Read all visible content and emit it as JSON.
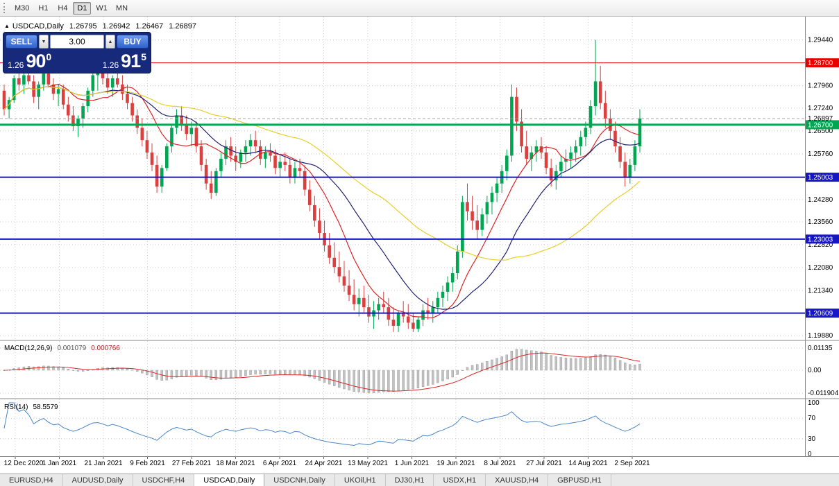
{
  "toolbar": {
    "timeframes": [
      {
        "label": "M30",
        "active": false
      },
      {
        "label": "H1",
        "active": false
      },
      {
        "label": "H4",
        "active": false
      },
      {
        "label": "D1",
        "active": true
      },
      {
        "label": "W1",
        "active": false
      },
      {
        "label": "MN",
        "active": false
      }
    ]
  },
  "chart_header": {
    "icon": "▲",
    "symbol": "USDCAD,Daily",
    "open": "1.26795",
    "high": "1.26942",
    "low": "1.26467",
    "close": "1.26897"
  },
  "trade_panel": {
    "sell_label": "SELL",
    "buy_label": "BUY",
    "volume": "3.00",
    "spin_down_icon": "▼",
    "spin_up_icon": "▲",
    "bid": {
      "prefix": "1.26",
      "big": "90",
      "sup": "0"
    },
    "ask": {
      "prefix": "1.26",
      "big": "91",
      "sup": "5"
    }
  },
  "chart_data": {
    "type": "candlestick",
    "title": "USDCAD,Daily",
    "price_axis": {
      "min": 1.1975,
      "max": 1.297,
      "grid_labels": [
        "1.29440",
        "1.27960",
        "1.27240",
        "1.26500",
        "1.25760",
        "1.24280",
        "1.23560",
        "1.22820",
        "1.22080",
        "1.21340",
        "1.19880"
      ]
    },
    "x_labels": [
      "12 Dec 2020",
      "1 Jan 2021",
      "21 Jan 2021",
      "9 Feb 2021",
      "27 Feb 2021",
      "18 Mar 2021",
      "6 Apr 2021",
      "24 Apr 2021",
      "13 May 2021",
      "1 Jun 2021",
      "19 Jun 2021",
      "8 Jul 2021",
      "27 Jul 2021",
      "14 Aug 2021",
      "2 Sep 2021"
    ],
    "hlines": [
      {
        "price": 1.287,
        "label": "1.28700",
        "color": "#e80000",
        "width": 1
      },
      {
        "price": 1.267,
        "label": "1.26700",
        "color": "#00a651",
        "width": 3
      },
      {
        "price": 1.25003,
        "label": "1.25003",
        "color": "#1616c8",
        "width": 2
      },
      {
        "price": 1.23003,
        "label": "1.23003",
        "color": "#1616c8",
        "width": 2
      },
      {
        "price": 1.20609,
        "label": "1.20609",
        "color": "#1616c8",
        "width": 2
      }
    ],
    "current_price": {
      "value": 1.26897,
      "label": "1.26897"
    },
    "colors": {
      "up": "#00a651",
      "down": "#d94040"
    },
    "moving_averages": [
      {
        "period": 10,
        "color": "#d92626"
      },
      {
        "period": 21,
        "color": "#20206e"
      },
      {
        "period": 45,
        "color": "#e8cf2a"
      }
    ],
    "candles": [
      [
        1.278,
        1.28,
        1.27,
        1.272
      ],
      [
        1.272,
        1.276,
        1.269,
        1.275
      ],
      [
        1.275,
        1.283,
        1.274,
        1.282
      ],
      [
        1.282,
        1.285,
        1.278,
        1.28
      ],
      [
        1.28,
        1.284,
        1.277,
        1.283
      ],
      [
        1.283,
        1.286,
        1.28,
        1.281
      ],
      [
        1.281,
        1.283,
        1.274,
        1.276
      ],
      [
        1.276,
        1.281,
        1.272,
        1.28
      ],
      [
        1.28,
        1.2845,
        1.278,
        1.2835
      ],
      [
        1.2835,
        1.285,
        1.279,
        1.28
      ],
      [
        1.28,
        1.282,
        1.275,
        1.277
      ],
      [
        1.277,
        1.28,
        1.273,
        1.2785
      ],
      [
        1.2785,
        1.28,
        1.272,
        1.2735
      ],
      [
        1.2735,
        1.276,
        1.268,
        1.27
      ],
      [
        1.27,
        1.273,
        1.265,
        1.2665
      ],
      [
        1.2665,
        1.27,
        1.263,
        1.269
      ],
      [
        1.269,
        1.274,
        1.266,
        1.273
      ],
      [
        1.273,
        1.279,
        1.271,
        1.278
      ],
      [
        1.278,
        1.284,
        1.276,
        1.283
      ],
      [
        1.283,
        1.285,
        1.278,
        1.284
      ],
      [
        1.284,
        1.286,
        1.28,
        1.282
      ],
      [
        1.282,
        1.284,
        1.277,
        1.279
      ],
      [
        1.279,
        1.283,
        1.276,
        1.282
      ],
      [
        1.282,
        1.2845,
        1.279,
        1.28
      ],
      [
        1.28,
        1.283,
        1.275,
        1.277
      ],
      [
        1.277,
        1.28,
        1.272,
        1.274
      ],
      [
        1.274,
        1.276,
        1.268,
        1.27
      ],
      [
        1.27,
        1.272,
        1.264,
        1.266
      ],
      [
        1.266,
        1.269,
        1.26,
        1.262
      ],
      [
        1.262,
        1.265,
        1.256,
        1.258
      ],
      [
        1.258,
        1.261,
        1.252,
        1.254
      ],
      [
        1.254,
        1.257,
        1.245,
        1.247
      ],
      [
        1.247,
        1.254,
        1.245,
        1.253
      ],
      [
        1.253,
        1.261,
        1.252,
        1.26
      ],
      [
        1.26,
        1.267,
        1.258,
        1.266
      ],
      [
        1.266,
        1.272,
        1.264,
        1.27
      ],
      [
        1.27,
        1.273,
        1.265,
        1.267
      ],
      [
        1.267,
        1.27,
        1.262,
        1.264
      ],
      [
        1.264,
        1.268,
        1.26,
        1.266
      ],
      [
        1.266,
        1.268,
        1.258,
        1.26
      ],
      [
        1.26,
        1.262,
        1.252,
        1.254
      ],
      [
        1.254,
        1.256,
        1.246,
        1.248
      ],
      [
        1.248,
        1.252,
        1.243,
        1.245
      ],
      [
        1.245,
        1.253,
        1.244,
        1.252
      ],
      [
        1.252,
        1.258,
        1.25,
        1.256
      ],
      [
        1.256,
        1.262,
        1.254,
        1.26
      ],
      [
        1.26,
        1.263,
        1.255,
        1.257
      ],
      [
        1.257,
        1.26,
        1.252,
        1.255
      ],
      [
        1.255,
        1.259,
        1.253,
        1.258
      ],
      [
        1.258,
        1.262,
        1.255,
        1.26
      ],
      [
        1.26,
        1.264,
        1.257,
        1.262
      ],
      [
        1.262,
        1.265,
        1.258,
        1.26
      ],
      [
        1.26,
        1.262,
        1.254,
        1.256
      ],
      [
        1.256,
        1.26,
        1.253,
        1.258
      ],
      [
        1.258,
        1.261,
        1.255,
        1.257
      ],
      [
        1.257,
        1.259,
        1.251,
        1.253
      ],
      [
        1.253,
        1.257,
        1.25,
        1.255
      ],
      [
        1.255,
        1.258,
        1.252,
        1.254
      ],
      [
        1.254,
        1.256,
        1.248,
        1.25
      ],
      [
        1.25,
        1.255,
        1.248,
        1.253
      ],
      [
        1.253,
        1.256,
        1.25,
        1.252
      ],
      [
        1.252,
        1.254,
        1.244,
        1.246
      ],
      [
        1.246,
        1.249,
        1.239,
        1.241
      ],
      [
        1.241,
        1.244,
        1.234,
        1.236
      ],
      [
        1.236,
        1.24,
        1.23,
        1.232
      ],
      [
        1.232,
        1.236,
        1.226,
        1.228
      ],
      [
        1.228,
        1.232,
        1.222,
        1.224
      ],
      [
        1.224,
        1.229,
        1.219,
        1.221
      ],
      [
        1.221,
        1.226,
        1.216,
        1.218
      ],
      [
        1.218,
        1.223,
        1.213,
        1.215
      ],
      [
        1.215,
        1.22,
        1.21,
        1.212
      ],
      [
        1.212,
        1.217,
        1.207,
        1.209
      ],
      [
        1.209,
        1.214,
        1.205,
        1.211
      ],
      [
        1.211,
        1.215,
        1.206,
        1.208
      ],
      [
        1.208,
        1.212,
        1.203,
        1.205
      ],
      [
        1.205,
        1.21,
        1.201,
        1.207
      ],
      [
        1.207,
        1.211,
        1.204,
        1.209
      ],
      [
        1.209,
        1.213,
        1.206,
        1.208
      ],
      [
        1.208,
        1.211,
        1.202,
        1.204
      ],
      [
        1.204,
        1.208,
        1.2,
        1.202
      ],
      [
        1.202,
        1.207,
        1.2,
        1.206
      ],
      [
        1.206,
        1.21,
        1.203,
        1.205
      ],
      [
        1.205,
        1.209,
        1.201,
        1.203
      ],
      [
        1.203,
        1.206,
        1.2,
        1.201
      ],
      [
        1.201,
        1.205,
        1.2,
        1.204
      ],
      [
        1.204,
        1.209,
        1.202,
        1.207
      ],
      [
        1.207,
        1.211,
        1.204,
        1.206
      ],
      [
        1.206,
        1.21,
        1.203,
        1.208
      ],
      [
        1.208,
        1.213,
        1.206,
        1.211
      ],
      [
        1.211,
        1.215,
        1.208,
        1.213
      ],
      [
        1.213,
        1.218,
        1.21,
        1.216
      ],
      [
        1.216,
        1.221,
        1.213,
        1.219
      ],
      [
        1.219,
        1.228,
        1.217,
        1.226
      ],
      [
        1.226,
        1.244,
        1.224,
        1.242
      ],
      [
        1.242,
        1.248,
        1.236,
        1.239
      ],
      [
        1.239,
        1.244,
        1.233,
        1.236
      ],
      [
        1.236,
        1.241,
        1.23,
        1.233
      ],
      [
        1.233,
        1.24,
        1.231,
        1.238
      ],
      [
        1.238,
        1.244,
        1.235,
        1.242
      ],
      [
        1.242,
        1.247,
        1.238,
        1.245
      ],
      [
        1.245,
        1.25,
        1.242,
        1.248
      ],
      [
        1.248,
        1.254,
        1.245,
        1.252
      ],
      [
        1.252,
        1.259,
        1.249,
        1.257
      ],
      [
        1.257,
        1.28,
        1.255,
        1.276
      ],
      [
        1.276,
        1.279,
        1.265,
        1.268
      ],
      [
        1.268,
        1.272,
        1.258,
        1.26
      ],
      [
        1.26,
        1.265,
        1.254,
        1.256
      ],
      [
        1.256,
        1.26,
        1.252,
        1.258
      ],
      [
        1.258,
        1.262,
        1.255,
        1.26
      ],
      [
        1.26,
        1.263,
        1.256,
        1.258
      ],
      [
        1.258,
        1.26,
        1.251,
        1.253
      ],
      [
        1.253,
        1.256,
        1.247,
        1.249
      ],
      [
        1.249,
        1.254,
        1.246,
        1.252
      ],
      [
        1.252,
        1.257,
        1.25,
        1.255
      ],
      [
        1.255,
        1.259,
        1.252,
        1.256
      ],
      [
        1.256,
        1.26,
        1.253,
        1.258
      ],
      [
        1.258,
        1.262,
        1.255,
        1.26
      ],
      [
        1.26,
        1.265,
        1.257,
        1.263
      ],
      [
        1.263,
        1.268,
        1.26,
        1.266
      ],
      [
        1.266,
        1.275,
        1.264,
        1.273
      ],
      [
        1.273,
        1.2944,
        1.27,
        1.281
      ],
      [
        1.281,
        1.286,
        1.272,
        1.274
      ],
      [
        1.274,
        1.278,
        1.266,
        1.269
      ],
      [
        1.269,
        1.272,
        1.262,
        1.265
      ],
      [
        1.265,
        1.268,
        1.258,
        1.26
      ],
      [
        1.26,
        1.263,
        1.253,
        1.255
      ],
      [
        1.255,
        1.258,
        1.247,
        1.25
      ],
      [
        1.25,
        1.256,
        1.248,
        1.254
      ],
      [
        1.254,
        1.262,
        1.252,
        1.26
      ],
      [
        1.26,
        1.272,
        1.258,
        1.269
      ]
    ],
    "macd": {
      "name": "MACD(12,26,9)",
      "value_main": "0.001079",
      "value_signal": "0.000766",
      "axis_labels": [
        "0.01135",
        "0.00",
        "-0.011904"
      ],
      "signal_color": "#d92626",
      "bar_color": "#c2c2c2"
    },
    "rsi": {
      "name": "RSI(14)",
      "value": "58.5579",
      "axis_labels": [
        "100",
        "70",
        "30",
        "0"
      ],
      "color": "#4a86c8"
    }
  },
  "tabbar": {
    "tabs": [
      {
        "label": "EURUSD,H4",
        "active": false
      },
      {
        "label": "AUDUSD,Daily",
        "active": false
      },
      {
        "label": "USDCHF,H4",
        "active": false
      },
      {
        "label": "USDCAD,Daily",
        "active": true
      },
      {
        "label": "USDCNH,Daily",
        "active": false
      },
      {
        "label": "UKOil,H1",
        "active": false
      },
      {
        "label": "DJ30,H1",
        "active": false
      },
      {
        "label": "USDX,H1",
        "active": false
      },
      {
        "label": "XAUUSD,H4",
        "active": false
      },
      {
        "label": "GBPUSD,H1",
        "active": false
      }
    ]
  }
}
